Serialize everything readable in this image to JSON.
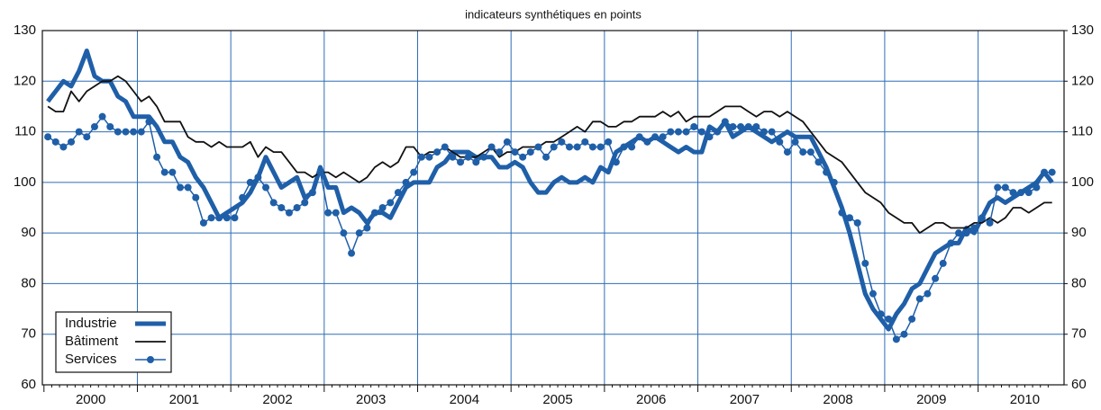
{
  "chart_data": {
    "type": "line",
    "title": "indicateurs synthétiques en points",
    "categories": [
      null,
      null,
      null,
      null,
      null,
      "2000",
      null,
      null,
      null,
      null,
      null,
      null,
      null,
      null,
      null,
      null,
      null,
      "2001",
      null,
      null,
      null,
      null,
      null,
      null,
      null,
      null,
      null,
      null,
      null,
      "2002",
      null,
      null,
      null,
      null,
      null,
      null,
      null,
      null,
      null,
      null,
      null,
      "2003",
      null,
      null,
      null,
      null,
      null,
      null,
      null,
      null,
      null,
      null,
      null,
      "2004",
      null,
      null,
      null,
      null,
      null,
      null,
      null,
      null,
      null,
      null,
      null,
      "2005",
      null,
      null,
      null,
      null,
      null,
      null,
      null,
      null,
      null,
      null,
      null,
      "2006",
      null,
      null,
      null,
      null,
      null,
      null,
      null,
      null,
      null,
      null,
      null,
      "2007",
      null,
      null,
      null,
      null,
      null,
      null,
      null,
      null,
      null,
      null,
      null,
      "2008",
      null,
      null,
      null,
      null,
      null,
      null,
      null,
      null,
      null,
      null,
      null,
      "2009",
      null,
      null,
      null,
      null,
      null,
      null,
      null,
      null,
      null,
      null,
      null,
      "2010",
      null,
      null,
      null,
      null
    ],
    "series": [
      {
        "name": "Industrie",
        "color": "#1f5fa8",
        "line_width": 5,
        "marker": false,
        "values": [
          116,
          118,
          120,
          119,
          122,
          126,
          121,
          120,
          120,
          117,
          116,
          113,
          113,
          113,
          111,
          108,
          108,
          105,
          104,
          101,
          99,
          96,
          93,
          94,
          95,
          96,
          98,
          101,
          105,
          102,
          99,
          100,
          101,
          97,
          98,
          103,
          99,
          99,
          94,
          95,
          94,
          92,
          94,
          94,
          93,
          96,
          99,
          100,
          100,
          100,
          103,
          104,
          106,
          106,
          106,
          105,
          105,
          105,
          103,
          103,
          104,
          103,
          100,
          98,
          98,
          100,
          101,
          100,
          100,
          101,
          100,
          103,
          102,
          106,
          107,
          108,
          109,
          108,
          109,
          108,
          107,
          106,
          107,
          106,
          106,
          111,
          110,
          112,
          109,
          110,
          111,
          110,
          109,
          108,
          109,
          110,
          109,
          109,
          109,
          106,
          103,
          99,
          95,
          90,
          84,
          78,
          75,
          73,
          71,
          74,
          76,
          79,
          80,
          83,
          86,
          87,
          88,
          88,
          91,
          90,
          93,
          96,
          97,
          96,
          97,
          98,
          99,
          100,
          102,
          100
        ]
      },
      {
        "name": "Bâtiment",
        "color": "#111111",
        "line_width": 1.8,
        "marker": false,
        "values": [
          115,
          114,
          114,
          118,
          116,
          118,
          119,
          120,
          120,
          121,
          120,
          118,
          116,
          117,
          115,
          112,
          112,
          112,
          109,
          108,
          108,
          107,
          108,
          107,
          107,
          107,
          108,
          105,
          107,
          106,
          106,
          104,
          102,
          102,
          101,
          102,
          102,
          101,
          102,
          101,
          100,
          101,
          103,
          104,
          103,
          104,
          107,
          107,
          105,
          106,
          106,
          107,
          106,
          105,
          105,
          105,
          106,
          107,
          105,
          106,
          106,
          107,
          107,
          107,
          108,
          108,
          109,
          110,
          111,
          110,
          112,
          112,
          111,
          111,
          112,
          112,
          113,
          113,
          113,
          114,
          113,
          114,
          112,
          113,
          113,
          113,
          114,
          115,
          115,
          115,
          114,
          113,
          114,
          114,
          113,
          114,
          113,
          112,
          110,
          108,
          106,
          105,
          104,
          102,
          100,
          98,
          97,
          96,
          94,
          93,
          92,
          92,
          90,
          91,
          92,
          92,
          91,
          91,
          91,
          92,
          92,
          93,
          92,
          93,
          95,
          95,
          94,
          95,
          96,
          96
        ]
      },
      {
        "name": "Services",
        "color": "#1f5fa8",
        "line_width": 1.5,
        "marker": true,
        "values": [
          109,
          108,
          107,
          108,
          110,
          109,
          111,
          113,
          111,
          110,
          110,
          110,
          110,
          112,
          105,
          102,
          102,
          99,
          99,
          97,
          92,
          93,
          93,
          93,
          93,
          97,
          100,
          101,
          99,
          96,
          95,
          94,
          95,
          96,
          98,
          102,
          94,
          94,
          90,
          86,
          90,
          91,
          94,
          95,
          96,
          98,
          100,
          102,
          105,
          105,
          106,
          107,
          105,
          104,
          105,
          104,
          105,
          107,
          106,
          108,
          106,
          105,
          106,
          107,
          105,
          107,
          108,
          107,
          107,
          108,
          107,
          107,
          108,
          104,
          107,
          107,
          109,
          108,
          109,
          109,
          110,
          110,
          110,
          111,
          110,
          109,
          110,
          112,
          111,
          111,
          111,
          111,
          110,
          110,
          108,
          106,
          108,
          106,
          106,
          104,
          102,
          100,
          94,
          93,
          92,
          84,
          78,
          74,
          73,
          69,
          70,
          73,
          77,
          78,
          81,
          84,
          88,
          90,
          90,
          91,
          93,
          92,
          99,
          99,
          98,
          98,
          98,
          99,
          102,
          102
        ]
      }
    ],
    "ylim": [
      60,
      130
    ],
    "yticks": [
      60,
      70,
      80,
      90,
      100,
      110,
      120,
      130
    ],
    "y2lim": [
      60,
      130
    ],
    "y2ticks": [
      60,
      70,
      80,
      90,
      100,
      110,
      120,
      130
    ],
    "grid": true,
    "grid_color": "#2f6db5",
    "legend": "lower left"
  }
}
